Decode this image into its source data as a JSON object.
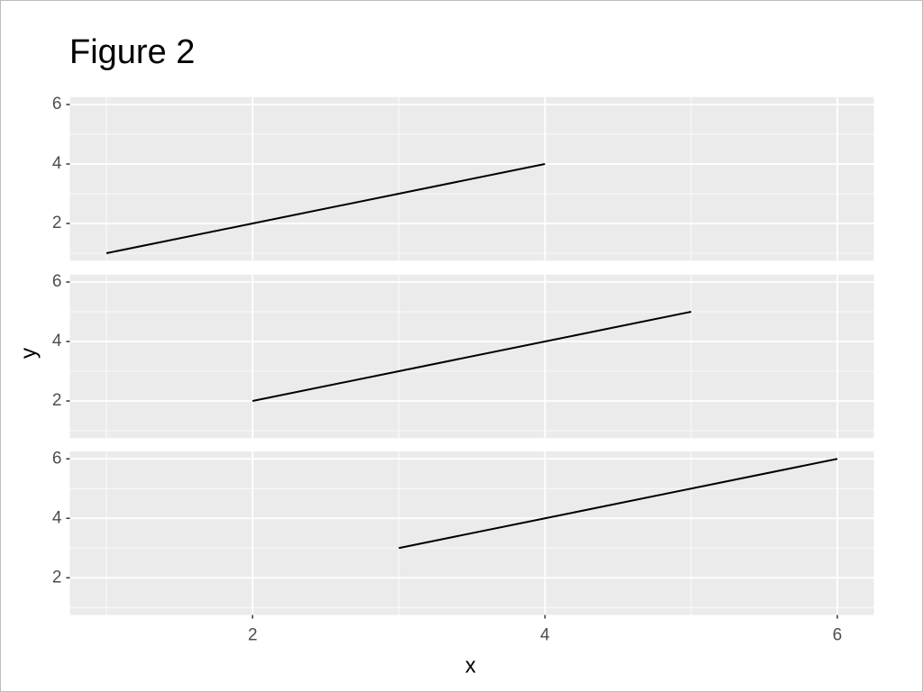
{
  "figure": {
    "title": "Figure 2",
    "xlabel": "x",
    "ylabel": "y"
  },
  "chart_data": [
    {
      "type": "line",
      "x": [
        1,
        2,
        3,
        4
      ],
      "series": [
        {
          "color": "#000000",
          "values": [
            1,
            2,
            3,
            4
          ]
        }
      ],
      "xlim": [
        0.75,
        6.25
      ],
      "ylim": [
        0.75,
        6.25
      ],
      "xticks": [
        2,
        4,
        6
      ],
      "yticks": [
        2,
        4,
        6
      ],
      "x_minor_breaks": [
        1,
        3,
        5
      ],
      "y_minor_breaks": [
        1,
        3,
        5
      ],
      "grid": true
    },
    {
      "type": "line",
      "x": [
        2,
        3,
        4,
        5
      ],
      "series": [
        {
          "color": "#000000",
          "values": [
            2,
            3,
            4,
            5
          ]
        }
      ],
      "xlim": [
        0.75,
        6.25
      ],
      "ylim": [
        0.75,
        6.25
      ],
      "xticks": [
        2,
        4,
        6
      ],
      "yticks": [
        2,
        4,
        6
      ],
      "x_minor_breaks": [
        1,
        3,
        5
      ],
      "y_minor_breaks": [
        1,
        3,
        5
      ],
      "grid": true
    },
    {
      "type": "line",
      "x": [
        3,
        4,
        5,
        6
      ],
      "series": [
        {
          "color": "#000000",
          "values": [
            3,
            4,
            5,
            6
          ]
        }
      ],
      "xlim": [
        0.75,
        6.25
      ],
      "ylim": [
        0.75,
        6.25
      ],
      "xticks": [
        2,
        4,
        6
      ],
      "yticks": [
        2,
        4,
        6
      ],
      "x_minor_breaks": [
        1,
        3,
        5
      ],
      "y_minor_breaks": [
        1,
        3,
        5
      ],
      "grid": true
    }
  ]
}
